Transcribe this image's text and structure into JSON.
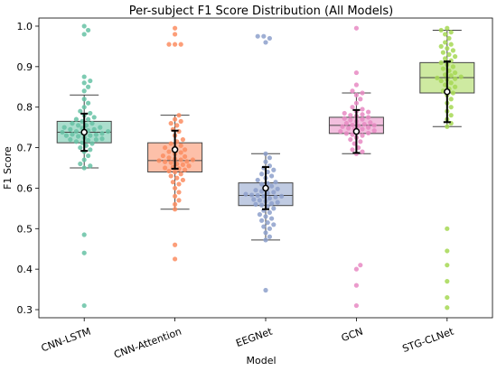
{
  "chart_data": {
    "type": "box",
    "title": "Per-subject F1 Score Distribution (All Models)",
    "xlabel": "Model",
    "ylabel": "F1 Score",
    "ylim": [
      0.28,
      1.02
    ],
    "yticks": [
      0.3,
      0.4,
      0.5,
      0.6,
      0.7,
      0.8,
      0.9,
      1.0
    ],
    "ytick_labels": [
      "0.3",
      "0.4",
      "0.5",
      "0.6",
      "0.7",
      "0.8",
      "0.9",
      "1.0"
    ],
    "categories": [
      "CNN-LSTM",
      "CNN-Attention",
      "EEGNet",
      "GCN",
      "STG-CLNet"
    ],
    "grid": false,
    "legend": "none",
    "boxes": [
      {
        "name": "CNN-LSTM",
        "color": "#66c2a5",
        "q1": 0.712,
        "median": 0.738,
        "q3": 0.765,
        "whisker_low": 0.65,
        "whisker_high": 0.83,
        "mean": 0.738,
        "sd": 0.046,
        "points": [
          1.0,
          0.99,
          0.98,
          0.875,
          0.865,
          0.86,
          0.85,
          0.84,
          0.82,
          0.81,
          0.8,
          0.79,
          0.785,
          0.78,
          0.775,
          0.77,
          0.77,
          0.765,
          0.76,
          0.76,
          0.755,
          0.755,
          0.75,
          0.75,
          0.748,
          0.745,
          0.745,
          0.742,
          0.74,
          0.74,
          0.738,
          0.736,
          0.735,
          0.733,
          0.732,
          0.73,
          0.73,
          0.728,
          0.725,
          0.722,
          0.72,
          0.72,
          0.718,
          0.715,
          0.712,
          0.71,
          0.705,
          0.7,
          0.695,
          0.69,
          0.68,
          0.67,
          0.66,
          0.655,
          0.65,
          0.485,
          0.44,
          0.31
        ]
      },
      {
        "name": "CNN-Attention",
        "color": "#fc8d62",
        "q1": 0.64,
        "median": 0.668,
        "q3": 0.712,
        "whisker_low": 0.548,
        "whisker_high": 0.78,
        "mean": 0.695,
        "sd": 0.047,
        "points": [
          0.995,
          0.98,
          0.955,
          0.955,
          0.955,
          0.78,
          0.77,
          0.765,
          0.76,
          0.755,
          0.745,
          0.74,
          0.73,
          0.72,
          0.715,
          0.71,
          0.705,
          0.7,
          0.7,
          0.695,
          0.69,
          0.688,
          0.685,
          0.68,
          0.678,
          0.675,
          0.672,
          0.67,
          0.67,
          0.668,
          0.666,
          0.665,
          0.663,
          0.66,
          0.658,
          0.655,
          0.652,
          0.65,
          0.648,
          0.645,
          0.642,
          0.64,
          0.635,
          0.63,
          0.625,
          0.62,
          0.615,
          0.61,
          0.6,
          0.59,
          0.58,
          0.57,
          0.56,
          0.548,
          0.46,
          0.425
        ]
      },
      {
        "name": "EEGNet",
        "color": "#8da0cb",
        "q1": 0.557,
        "median": 0.582,
        "q3": 0.613,
        "whisker_low": 0.472,
        "whisker_high": 0.685,
        "mean": 0.6,
        "sd": 0.052,
        "points": [
          0.975,
          0.975,
          0.97,
          0.96,
          0.685,
          0.675,
          0.665,
          0.655,
          0.65,
          0.645,
          0.64,
          0.635,
          0.63,
          0.625,
          0.62,
          0.615,
          0.612,
          0.61,
          0.605,
          0.6,
          0.598,
          0.595,
          0.592,
          0.59,
          0.588,
          0.585,
          0.583,
          0.582,
          0.58,
          0.58,
          0.578,
          0.575,
          0.572,
          0.57,
          0.568,
          0.565,
          0.562,
          0.56,
          0.558,
          0.555,
          0.55,
          0.545,
          0.54,
          0.535,
          0.53,
          0.525,
          0.52,
          0.515,
          0.51,
          0.505,
          0.5,
          0.49,
          0.48,
          0.472,
          0.348
        ]
      },
      {
        "name": "GCN",
        "color": "#e78ac3",
        "q1": 0.735,
        "median": 0.755,
        "q3": 0.775,
        "whisker_low": 0.685,
        "whisker_high": 0.835,
        "mean": 0.74,
        "sd": 0.053,
        "points": [
          0.995,
          0.885,
          0.855,
          0.84,
          0.835,
          0.83,
          0.82,
          0.81,
          0.8,
          0.795,
          0.79,
          0.788,
          0.785,
          0.782,
          0.78,
          0.778,
          0.775,
          0.772,
          0.77,
          0.768,
          0.765,
          0.762,
          0.76,
          0.758,
          0.756,
          0.755,
          0.754,
          0.752,
          0.75,
          0.748,
          0.746,
          0.745,
          0.742,
          0.74,
          0.738,
          0.736,
          0.735,
          0.732,
          0.73,
          0.725,
          0.72,
          0.715,
          0.71,
          0.7,
          0.695,
          0.69,
          0.685,
          0.41,
          0.4,
          0.36,
          0.31
        ]
      },
      {
        "name": "STG-CLNet",
        "color": "#a6d854",
        "q1": 0.835,
        "median": 0.873,
        "q3": 0.91,
        "whisker_low": 0.752,
        "whisker_high": 0.99,
        "mean": 0.838,
        "sd": 0.075,
        "points": [
          0.995,
          0.99,
          0.985,
          0.98,
          0.97,
          0.96,
          0.955,
          0.95,
          0.945,
          0.94,
          0.935,
          0.93,
          0.925,
          0.92,
          0.915,
          0.91,
          0.905,
          0.9,
          0.895,
          0.89,
          0.885,
          0.88,
          0.878,
          0.875,
          0.872,
          0.87,
          0.868,
          0.865,
          0.86,
          0.855,
          0.85,
          0.845,
          0.84,
          0.835,
          0.83,
          0.82,
          0.81,
          0.8,
          0.79,
          0.78,
          0.77,
          0.76,
          0.752,
          0.5,
          0.445,
          0.41,
          0.37,
          0.33,
          0.305
        ]
      }
    ]
  }
}
